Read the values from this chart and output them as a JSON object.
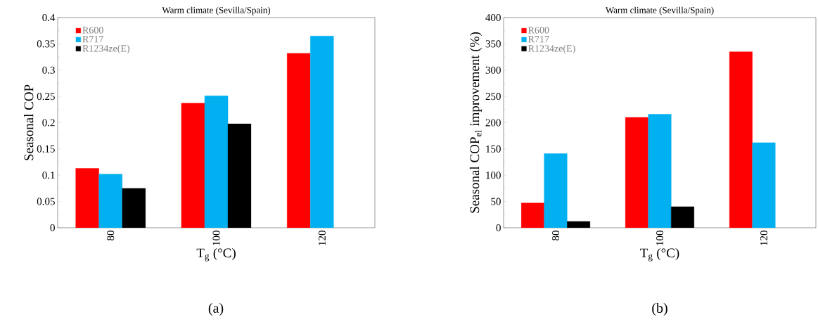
{
  "chart_data": [
    {
      "type": "bar",
      "title": "Warm climate (Sevilla/Spain)",
      "xlabel": "T$_{g}$ (°C)",
      "ylabel": "Seasonal COP",
      "categories": [
        "80",
        "100",
        "120"
      ],
      "series": [
        {
          "name": "R600",
          "color": "#ff0000",
          "values": [
            0.113,
            0.237,
            0.332
          ]
        },
        {
          "name": "R717",
          "color": "#00b0f0",
          "values": [
            0.102,
            0.251,
            0.365
          ]
        },
        {
          "name": "R1234ze(E)",
          "color": "#000000",
          "values": [
            0.075,
            0.198,
            null
          ]
        }
      ],
      "ylim": [
        0,
        0.4
      ],
      "yticks": [
        0,
        0.05,
        0.1,
        0.15,
        0.2,
        0.25,
        0.3,
        0.35,
        0.4
      ],
      "legend": "top left",
      "annotations": [
        "(a)"
      ]
    },
    {
      "type": "bar",
      "title": "Warm climate (Sevilla/Spain)",
      "xlabel": "T$_{g}$ (°C)",
      "ylabel": "Seasonal COP$_{el}$ improvement (%)",
      "categories": [
        "80",
        "100",
        "120"
      ],
      "series": [
        {
          "name": "R600",
          "color": "#ff0000",
          "values": [
            47,
            210,
            335
          ]
        },
        {
          "name": "R717",
          "color": "#00b0f0",
          "values": [
            141,
            216,
            162
          ]
        },
        {
          "name": "R1234ze(E)",
          "color": "#000000",
          "values": [
            12,
            40,
            null
          ]
        }
      ],
      "ylim": [
        0,
        400
      ],
      "yticks": [
        0,
        50,
        100,
        150,
        200,
        250,
        300,
        350,
        400
      ],
      "legend": "top left",
      "annotations": [
        "(b)"
      ]
    }
  ]
}
